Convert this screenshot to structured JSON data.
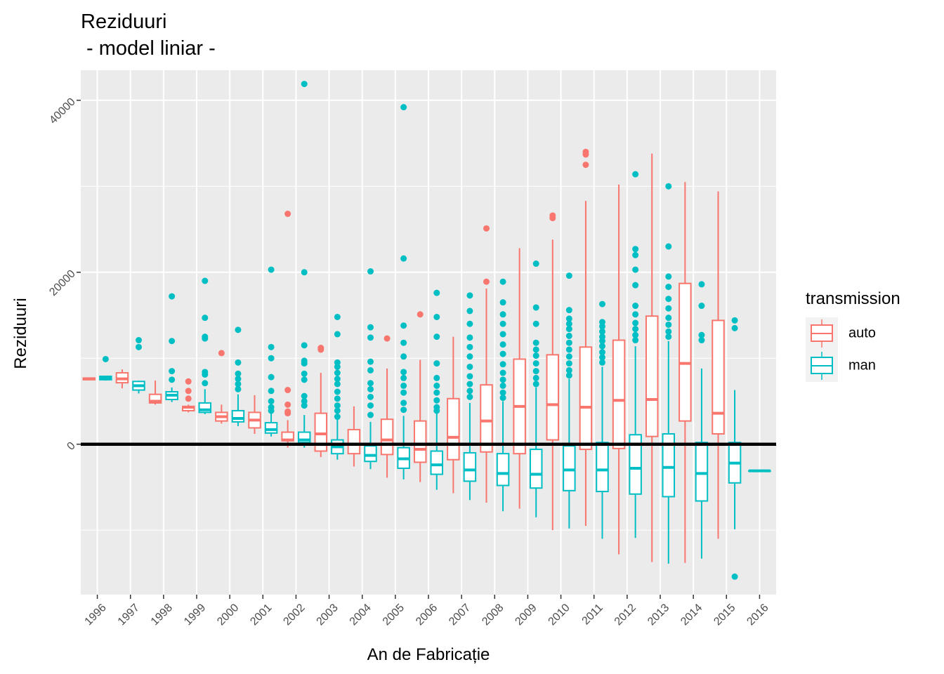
{
  "chart_data": {
    "type": "boxplot",
    "title": "Reziduuri",
    "subtitle": " - model liniar -",
    "xlabel": "An de Fabricație",
    "ylabel": "Reziduuri",
    "ylim": [
      -17500,
      43500
    ],
    "yticks": [
      0,
      20000,
      40000
    ],
    "y_minor_gridlines": [
      -10000,
      10000,
      30000
    ],
    "reference_line": {
      "y": 0,
      "color": "#000000"
    },
    "grid": true,
    "categories": [
      "1996",
      "1997",
      "1998",
      "1999",
      "2000",
      "2001",
      "2002",
      "2003",
      "2004",
      "2005",
      "2006",
      "2007",
      "2008",
      "2009",
      "2010",
      "2011",
      "2012",
      "2013",
      "2014",
      "2015",
      "2016"
    ],
    "legend": {
      "title": "transmission",
      "position": "right",
      "entries": [
        {
          "label": "auto",
          "color": "#F8766D"
        },
        {
          "label": "man",
          "color": "#00BFC4"
        }
      ]
    },
    "series": [
      {
        "name": "auto",
        "color": "#F8766D",
        "boxes": [
          {
            "x": "1996",
            "lower": 7500,
            "q1": 7500,
            "median": 7600,
            "q3": 7700,
            "upper": 7700,
            "outliers": []
          },
          {
            "x": "1997",
            "lower": 6500,
            "q1": 7150,
            "median": 7600,
            "q3": 8300,
            "upper": 8700,
            "outliers": []
          },
          {
            "x": "1998",
            "lower": 4600,
            "q1": 4800,
            "median": 5000,
            "q3": 5800,
            "upper": 7400,
            "outliers": []
          },
          {
            "x": "1999",
            "lower": 3700,
            "q1": 3900,
            "median": 4300,
            "q3": 4400,
            "upper": 4600,
            "outliers": [
              7300,
              6200,
              5300
            ]
          },
          {
            "x": "2000",
            "lower": 2400,
            "q1": 2700,
            "median": 3200,
            "q3": 3700,
            "upper": 4600,
            "outliers": [
              10600
            ]
          },
          {
            "x": "2001",
            "lower": 1200,
            "q1": 1900,
            "median": 2800,
            "q3": 3700,
            "upper": 5700,
            "outliers": []
          },
          {
            "x": "2002",
            "lower": -400,
            "q1": 400,
            "median": 500,
            "q3": 1400,
            "upper": 2800,
            "outliers": [
              26800,
              6300,
              4600,
              3800,
              3600
            ]
          },
          {
            "x": "2003",
            "lower": -1500,
            "q1": -800,
            "median": 1200,
            "q3": 3600,
            "upper": 8300,
            "outliers": [
              11200,
              11000
            ]
          },
          {
            "x": "2004",
            "lower": -2600,
            "q1": -1100,
            "median": 0,
            "q3": 1700,
            "upper": 4400,
            "outliers": []
          },
          {
            "x": "2005",
            "lower": -3900,
            "q1": -1200,
            "median": 500,
            "q3": 2900,
            "upper": 8800,
            "outliers": [
              12300
            ]
          },
          {
            "x": "2006",
            "lower": -4400,
            "q1": -2100,
            "median": -600,
            "q3": 2700,
            "upper": 9800,
            "outliers": [
              15100
            ]
          },
          {
            "x": "2007",
            "lower": -5700,
            "q1": -1800,
            "median": 800,
            "q3": 5300,
            "upper": 12500,
            "outliers": []
          },
          {
            "x": "2008",
            "lower": -6800,
            "q1": -900,
            "median": 2700,
            "q3": 6900,
            "upper": 18100,
            "outliers": [
              25100,
              18900
            ]
          },
          {
            "x": "2009",
            "lower": -7500,
            "q1": -1100,
            "median": 4400,
            "q3": 9900,
            "upper": 22800,
            "outliers": []
          },
          {
            "x": "2010",
            "lower": -10000,
            "q1": 500,
            "median": 4600,
            "q3": 10400,
            "upper": 23800,
            "outliers": [
              26600,
              26300
            ]
          },
          {
            "x": "2011",
            "lower": -9500,
            "q1": -600,
            "median": 4300,
            "q3": 11300,
            "upper": 28300,
            "outliers": [
              34000,
              33700,
              32500
            ]
          },
          {
            "x": "2012",
            "lower": -12800,
            "q1": -500,
            "median": 5100,
            "q3": 12100,
            "upper": 30200,
            "outliers": []
          },
          {
            "x": "2013",
            "lower": -13700,
            "q1": 900,
            "median": 5200,
            "q3": 14900,
            "upper": 33800,
            "outliers": []
          },
          {
            "x": "2014",
            "lower": -13800,
            "q1": 2700,
            "median": 9400,
            "q3": 18700,
            "upper": 30500,
            "outliers": []
          },
          {
            "x": "2015",
            "lower": -11000,
            "q1": 1200,
            "median": 3600,
            "q3": 14400,
            "upper": 29400,
            "outliers": []
          }
        ]
      },
      {
        "name": "man",
        "color": "#00BFC4",
        "boxes": [
          {
            "x": "1996",
            "lower": 7400,
            "q1": 7500,
            "median": 7700,
            "q3": 7900,
            "upper": 7900,
            "outliers": [
              9900
            ]
          },
          {
            "x": "1997",
            "lower": 5900,
            "q1": 6300,
            "median": 6800,
            "q3": 7300,
            "upper": 7400,
            "outliers": [
              12100,
              11300
            ]
          },
          {
            "x": "1998",
            "lower": 4900,
            "q1": 5200,
            "median": 5700,
            "q3": 6100,
            "upper": 6600,
            "outliers": [
              17200,
              12000,
              8500,
              7500
            ]
          },
          {
            "x": "1999",
            "lower": 3500,
            "q1": 3700,
            "median": 4000,
            "q3": 4800,
            "upper": 6400,
            "outliers": [
              19000,
              14700,
              12500,
              12300,
              8400,
              8100,
              7100
            ]
          },
          {
            "x": "2000",
            "lower": 2100,
            "q1": 2600,
            "median": 3000,
            "q3": 3900,
            "upper": 5800,
            "outliers": [
              13300,
              9500,
              8200,
              7600,
              7000,
              6400
            ]
          },
          {
            "x": "2001",
            "lower": 900,
            "q1": 1300,
            "median": 1700,
            "q3": 2500,
            "upper": 3600,
            "outliers": [
              20300,
              11300,
              10000,
              7800,
              6200,
              5000,
              4300,
              3900
            ]
          },
          {
            "x": "2002",
            "lower": -400,
            "q1": 200,
            "median": 500,
            "q3": 1400,
            "upper": 3400,
            "outliers": [
              41900,
              20000,
              11500,
              9700,
              9400,
              8200,
              7500,
              5600,
              5000,
              4500
            ]
          },
          {
            "x": "2003",
            "lower": -1800,
            "q1": -1100,
            "median": -300,
            "q3": 500,
            "upper": 2900,
            "outliers": [
              14800,
              12800,
              9500,
              9000,
              8300,
              7600,
              7000,
              6100,
              5300,
              4500,
              3900,
              3200
            ]
          },
          {
            "x": "2004",
            "lower": -2900,
            "q1": -2000,
            "median": -1300,
            "q3": -200,
            "upper": 2600,
            "outliers": [
              20100,
              13600,
              12400,
              9600,
              8600,
              7100,
              6400,
              5500,
              4500,
              3400
            ]
          },
          {
            "x": "2005",
            "lower": -4100,
            "q1": -2800,
            "median": -1700,
            "q3": -400,
            "upper": 3300,
            "outliers": [
              39200,
              21600,
              13800,
              11800,
              10200,
              8400,
              7700,
              6800,
              6000,
              4800,
              4000
            ]
          },
          {
            "x": "2006",
            "lower": -5300,
            "q1": -3500,
            "median": -2400,
            "q3": -800,
            "upper": 3600,
            "outliers": [
              17600,
              14800,
              12500,
              9400,
              7700,
              6800,
              6000,
              5100,
              4300,
              3900
            ]
          },
          {
            "x": "2007",
            "lower": -6500,
            "q1": -4300,
            "median": -3000,
            "q3": -1000,
            "upper": 4800,
            "outliers": [
              17300,
              15500,
              14000,
              12400,
              11300,
              10200,
              9000,
              7900,
              7000,
              6200,
              5500
            ]
          },
          {
            "x": "2008",
            "lower": -7800,
            "q1": -4800,
            "median": -3400,
            "q3": -1100,
            "upper": 5000,
            "outliers": [
              18900,
              16500,
              15100,
              14000,
              12800,
              11600,
              10500,
              9300,
              8300,
              7500,
              6800,
              6000,
              5400
            ]
          },
          {
            "x": "2009",
            "lower": -8500,
            "q1": -5100,
            "median": -3500,
            "q3": -600,
            "upper": 6600,
            "outliers": [
              21000,
              15900,
              14000,
              11800,
              11000,
              10300,
              9400,
              8500,
              7700,
              7000
            ]
          },
          {
            "x": "2010",
            "lower": -9800,
            "q1": -5400,
            "median": -3000,
            "q3": -200,
            "upper": 7600,
            "outliers": [
              19600,
              15600,
              14600,
              14000,
              13400,
              12600,
              11800,
              11000,
              10200,
              9400,
              8600,
              8000
            ]
          },
          {
            "x": "2011",
            "lower": -11000,
            "q1": -5500,
            "median": -3000,
            "q3": 200,
            "upper": 9000,
            "outliers": [
              16300,
              14200,
              13700,
              13100,
              12500,
              12000,
              11400,
              10700,
              10100,
              9500
            ]
          },
          {
            "x": "2012",
            "lower": -10900,
            "q1": -5800,
            "median": -2800,
            "q3": 1100,
            "upper": 11400,
            "outliers": [
              31400,
              22700,
              22000,
              20300,
              18500,
              16100,
              15100,
              14100,
              13400,
              12700,
              12100
            ]
          },
          {
            "x": "2013",
            "lower": -13900,
            "q1": -6100,
            "median": -2700,
            "q3": 1200,
            "upper": 12000,
            "outliers": [
              30000,
              23000,
              19500,
              18300,
              16900,
              15800,
              14700,
              13900,
              13100,
              12500
            ]
          },
          {
            "x": "2014",
            "lower": -13300,
            "q1": -6600,
            "median": -3400,
            "q3": 200,
            "upper": 8800,
            "outliers": [
              18600,
              16100,
              12700,
              12100
            ]
          },
          {
            "x": "2015",
            "lower": -9900,
            "q1": -4500,
            "median": -2200,
            "q3": 200,
            "upper": 6300,
            "outliers": [
              14400,
              13500,
              -15400
            ]
          },
          {
            "x": "2016",
            "lower": -3100,
            "q1": -3100,
            "median": -3100,
            "q3": -3100,
            "upper": -3100,
            "outliers": []
          }
        ]
      }
    ]
  }
}
